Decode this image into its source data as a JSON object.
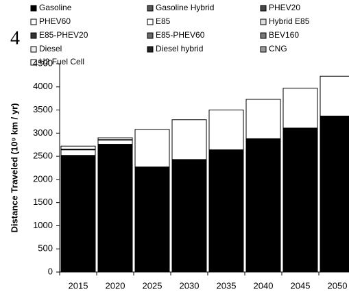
{
  "chart_data": {
    "type": "bar",
    "stacked": true,
    "panel_label": "4",
    "y_label": "Distance Traveled (10⁹ km / yr)",
    "categories": [
      "2015",
      "2020",
      "2025",
      "2030",
      "2035",
      "2040",
      "2045",
      "2050"
    ],
    "series": [
      {
        "name": "Gasoline",
        "color": "#000000",
        "values": [
          2520,
          2760,
          2270,
          2430,
          2640,
          2880,
          3110,
          3370
        ]
      },
      {
        "name": "Gasoline Hybrid",
        "color": "#555555",
        "values": [
          0,
          0,
          0,
          0,
          0,
          0,
          0,
          0
        ]
      },
      {
        "name": "PHEV20",
        "color": "#444444",
        "values": [
          0,
          0,
          0,
          0,
          0,
          0,
          0,
          0
        ]
      },
      {
        "name": "PHEV60",
        "color": "#ffffff",
        "values": [
          0,
          0,
          0,
          0,
          0,
          0,
          0,
          0
        ]
      },
      {
        "name": "E85",
        "color": "#ffffff",
        "values": [
          120,
          90,
          0,
          0,
          0,
          0,
          0,
          0
        ]
      },
      {
        "name": "Hybrid E85",
        "color": "#dddddd",
        "values": [
          0,
          0,
          0,
          0,
          0,
          0,
          0,
          0
        ]
      },
      {
        "name": "E85-PHEV20",
        "color": "#333333",
        "values": [
          0,
          0,
          0,
          0,
          0,
          0,
          0,
          0
        ]
      },
      {
        "name": "E85-PHEV60",
        "color": "#666666",
        "values": [
          0,
          0,
          0,
          0,
          0,
          0,
          0,
          0
        ]
      },
      {
        "name": "BEV160",
        "color": "#777777",
        "values": [
          0,
          0,
          0,
          0,
          0,
          0,
          0,
          0
        ]
      },
      {
        "name": "Diesel",
        "color": "#eeeeee",
        "values": [
          0,
          0,
          0,
          0,
          0,
          0,
          0,
          0
        ]
      },
      {
        "name": "Diesel hybrid",
        "color": "#222222",
        "values": [
          15,
          10,
          0,
          0,
          0,
          0,
          0,
          0
        ]
      },
      {
        "name": "CNG",
        "color": "#999999",
        "values": [
          0,
          0,
          0,
          0,
          0,
          0,
          0,
          0
        ]
      },
      {
        "name": "H2 Fuel Cell",
        "color": "#ffffff",
        "values": [
          65,
          40,
          810,
          860,
          860,
          850,
          860,
          860
        ]
      }
    ],
    "ylim": [
      0,
      4500
    ],
    "yticks": [
      0,
      500,
      1000,
      1500,
      2000,
      2500,
      3000,
      3500,
      4000,
      4500
    ]
  }
}
